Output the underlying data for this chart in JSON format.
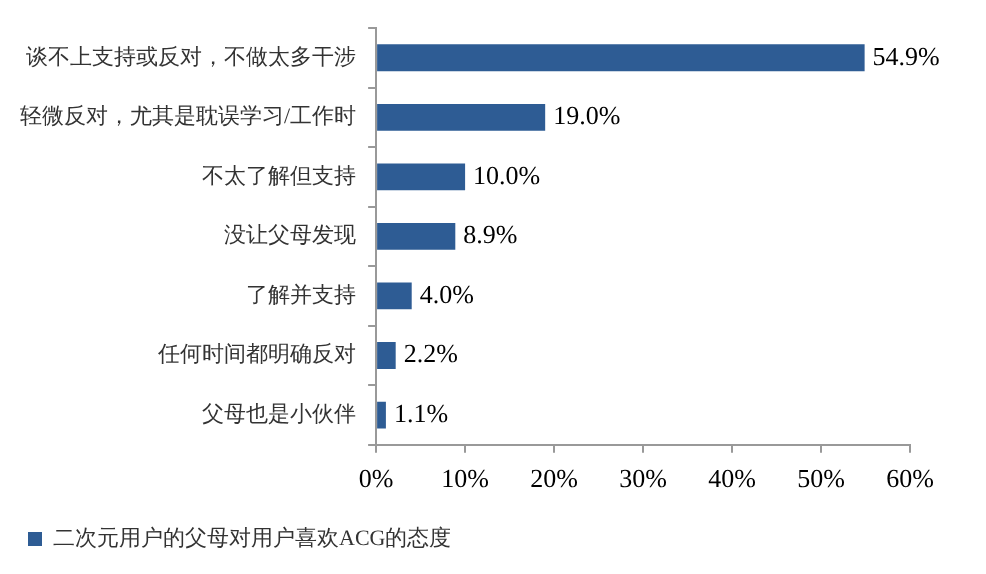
{
  "chart_data": {
    "type": "bar",
    "orientation": "horizontal",
    "categories": [
      "谈不上支持或反对，不做太多干涉",
      "轻微反对，尤其是耽误学习/工作时",
      "不太了解但支持",
      "没让父母发现",
      "了解并支持",
      "任何时间都明确反对",
      "父母也是小伙伴"
    ],
    "series": [
      {
        "name": "二次元用户的父母对用户喜欢ACG的态度",
        "color": "#2e5c94",
        "values": [
          54.9,
          19.0,
          10.0,
          8.9,
          4.0,
          2.2,
          1.1
        ],
        "value_labels": [
          "54.9%",
          "19.0%",
          "10.0%",
          "8.9%",
          "4.0%",
          "2.2%",
          "1.1%"
        ]
      }
    ],
    "xlim": [
      0,
      60
    ],
    "xticks": [
      {
        "value": 0,
        "label": "0%"
      },
      {
        "value": 10,
        "label": "10%"
      },
      {
        "value": 20,
        "label": "20%"
      },
      {
        "value": 30,
        "label": "30%"
      },
      {
        "value": 40,
        "label": "40%"
      },
      {
        "value": 50,
        "label": "50%"
      },
      {
        "value": 60,
        "label": "60%"
      }
    ],
    "grid": false,
    "legend": "bottom left"
  }
}
